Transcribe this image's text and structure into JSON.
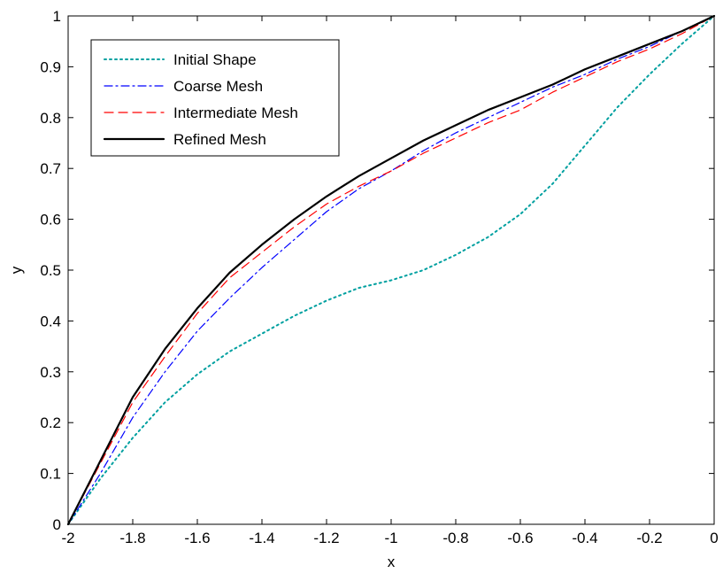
{
  "chart_data": {
    "type": "line",
    "title": "",
    "xlabel": "x",
    "ylabel": "y",
    "xlim": [
      -2,
      0
    ],
    "ylim": [
      0,
      1
    ],
    "xticks": [
      -2,
      -1.8,
      -1.6,
      -1.4,
      -1.2,
      -1,
      -0.8,
      -0.6,
      -0.4,
      -0.2,
      0
    ],
    "yticks": [
      0,
      0.1,
      0.2,
      0.3,
      0.4,
      0.5,
      0.6,
      0.7,
      0.8,
      0.9,
      1
    ],
    "xtick_labels": [
      "-2",
      "-1.8",
      "-1.6",
      "-1.4",
      "-1.2",
      "-1",
      "-0.8",
      "-0.6",
      "-0.4",
      "-0.2",
      "0"
    ],
    "ytick_labels": [
      "0",
      "0.1",
      "0.2",
      "0.3",
      "0.4",
      "0.5",
      "0.6",
      "0.7",
      "0.8",
      "0.9",
      "1"
    ],
    "grid": false,
    "legend_position": "top-left",
    "x": [
      -2,
      -1.9,
      -1.8,
      -1.7,
      -1.6,
      -1.5,
      -1.4,
      -1.3,
      -1.2,
      -1.1,
      -1.0,
      -0.9,
      -0.8,
      -0.7,
      -0.6,
      -0.5,
      -0.4,
      -0.3,
      -0.2,
      -0.1,
      0
    ],
    "series": [
      {
        "name": "Initial Shape",
        "color": "#00a0a0",
        "style": "dotted",
        "values": [
          0,
          0.09,
          0.17,
          0.24,
          0.295,
          0.34,
          0.375,
          0.41,
          0.44,
          0.465,
          0.48,
          0.5,
          0.53,
          0.565,
          0.61,
          0.67,
          0.745,
          0.82,
          0.885,
          0.945,
          1.0
        ]
      },
      {
        "name": "Coarse Mesh",
        "color": "#0000ff",
        "style": "dashdot",
        "values": [
          0,
          0.1,
          0.21,
          0.3,
          0.38,
          0.445,
          0.505,
          0.56,
          0.615,
          0.66,
          0.695,
          0.735,
          0.77,
          0.8,
          0.83,
          0.86,
          0.885,
          0.915,
          0.94,
          0.97,
          1.0
        ]
      },
      {
        "name": "Intermediate Mesh",
        "color": "#ff0000",
        "style": "dashed",
        "values": [
          0,
          0.12,
          0.24,
          0.33,
          0.415,
          0.485,
          0.535,
          0.585,
          0.63,
          0.665,
          0.695,
          0.73,
          0.76,
          0.79,
          0.815,
          0.85,
          0.88,
          0.91,
          0.935,
          0.965,
          1.0
        ]
      },
      {
        "name": "Refined Mesh",
        "color": "#000000",
        "style": "solid",
        "values": [
          0,
          0.125,
          0.25,
          0.345,
          0.425,
          0.495,
          0.55,
          0.6,
          0.645,
          0.685,
          0.72,
          0.755,
          0.785,
          0.815,
          0.84,
          0.865,
          0.895,
          0.92,
          0.945,
          0.97,
          1.0
        ]
      }
    ]
  }
}
